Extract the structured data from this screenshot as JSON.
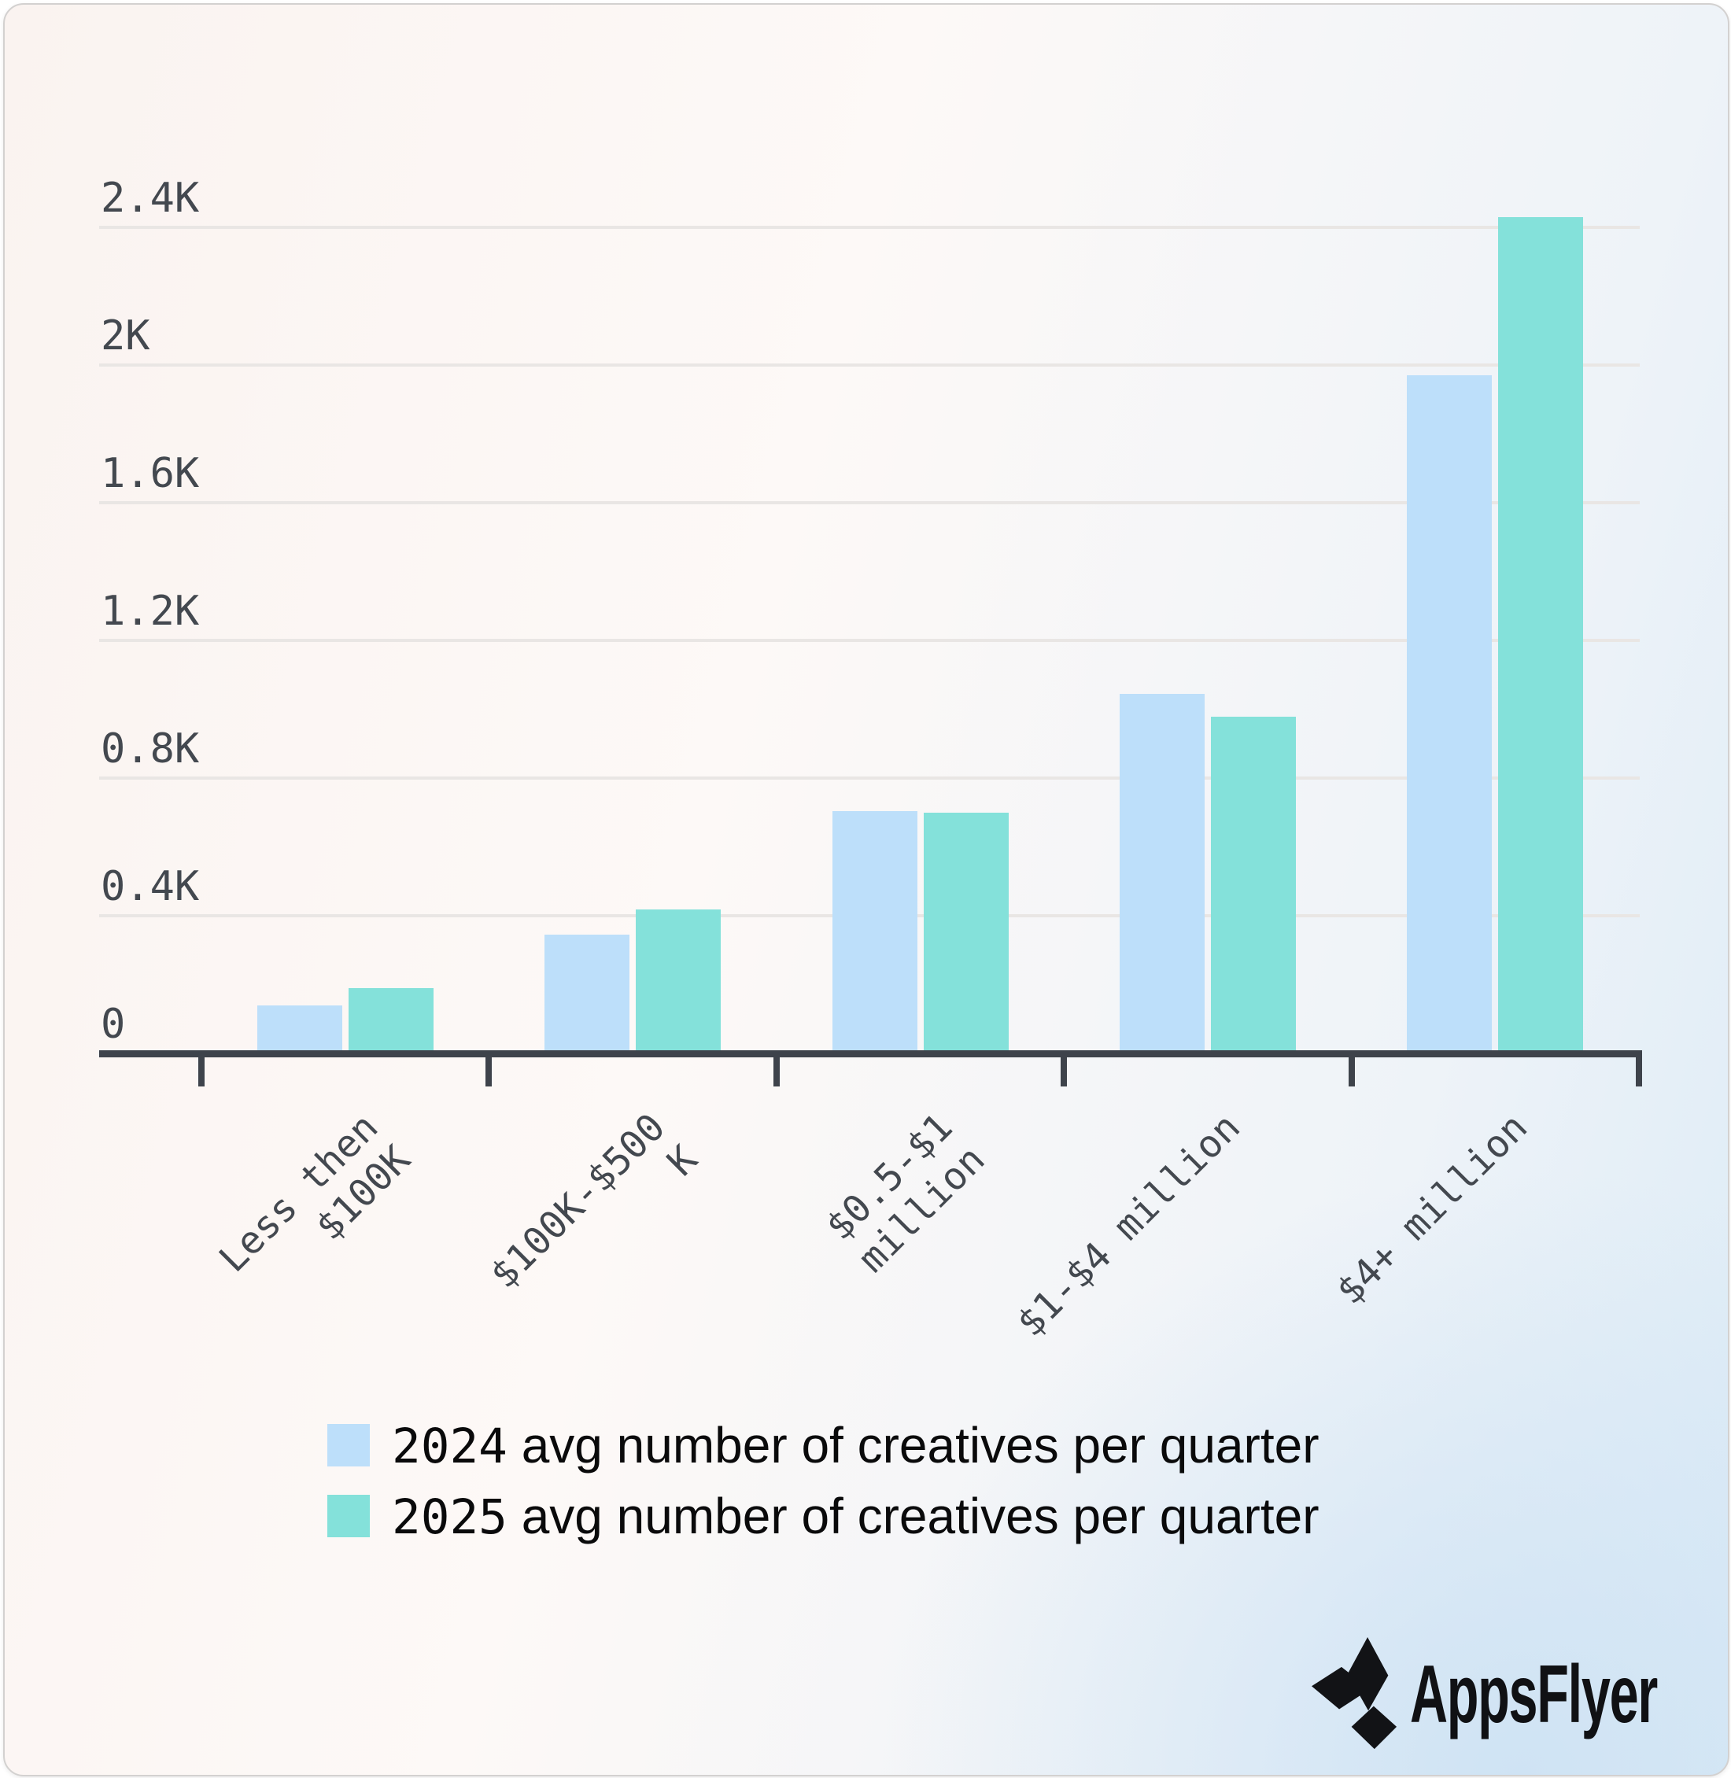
{
  "chart_data": {
    "type": "bar",
    "title": "",
    "categories": [
      "Less then $100K",
      "$100K-$500 K",
      "$0.5-$1 million",
      "$1-$4 million",
      "$4+ million"
    ],
    "category_lines": [
      [
        "Less then",
        "$100K"
      ],
      [
        "$100K-$500",
        "K"
      ],
      [
        "$0.5-$1",
        "million"
      ],
      [
        "$1-$4 million"
      ],
      [
        "$4+ million"
      ]
    ],
    "series": [
      {
        "name": "2024 avg number of creatives per quarter",
        "year": "2024",
        "suffix": " avg number of creatives per quarter",
        "color": "#BDDFFA",
        "values": [
          130,
          335,
          695,
          1035,
          1960
        ]
      },
      {
        "name": "2025 avg number of creatives per quarter",
        "year": "2025",
        "suffix": " avg number of creatives per quarter",
        "color": "#84E1DA",
        "values": [
          180,
          410,
          690,
          970,
          2420
        ]
      }
    ],
    "xlabel": "",
    "ylabel": "",
    "ylim": [
      0,
      2400
    ],
    "yticks": [
      {
        "value": 0,
        "label": "0"
      },
      {
        "value": 400,
        "label": "0.4K"
      },
      {
        "value": 800,
        "label": "0.8K"
      },
      {
        "value": 1200,
        "label": "1.2K"
      },
      {
        "value": 1600,
        "label": "1.6K"
      },
      {
        "value": 2000,
        "label": "2K"
      },
      {
        "value": 2400,
        "label": "2.4K"
      }
    ],
    "grid": true,
    "legend_position": "bottom"
  },
  "legend": {
    "items": [
      {
        "year": "2024",
        "label": " avg number of creatives per quarter",
        "color": "#BDDFFA"
      },
      {
        "year": "2025",
        "label": " avg number of creatives per quarter",
        "color": "#84E1DA"
      }
    ]
  },
  "branding": {
    "wordmark": "AppsFlyer"
  },
  "colors": {
    "axis": "#3E434B",
    "grid": "#E9E6E4",
    "tick_text": "#43484F",
    "legend_text": "#0A0A0B",
    "series_2024": "#BDDFFA",
    "series_2025": "#84E1DA"
  }
}
